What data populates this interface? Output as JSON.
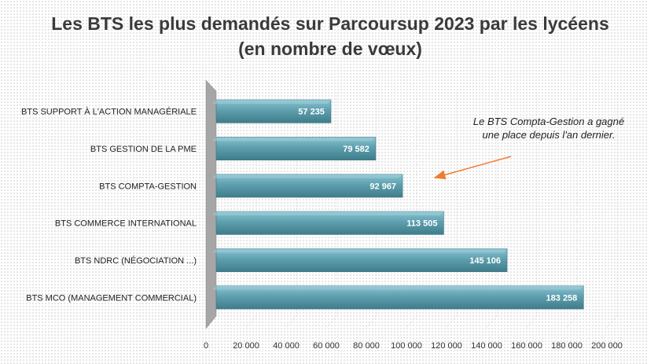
{
  "chart_data": {
    "type": "bar",
    "orientation": "horizontal",
    "title": "Les BTS les plus demandés sur Parcoursup 2023 par les lycéens  (en nombre de vœux)",
    "categories": [
      "BTS SUPPORT À L'ACTION MANAGÉRIALE",
      "BTS GESTION DE LA PME",
      "BTS COMPTA-GESTION",
      "BTS COMMERCE INTERNATIONAL",
      "BTS NDRC (NÉGOCIATION ...)",
      "BTS MCO (MANAGEMENT COMMERCIAL)"
    ],
    "values": [
      57235,
      79582,
      92967,
      113505,
      145106,
      183258
    ],
    "value_labels": [
      "57 235",
      "79 582",
      "92 967",
      "113 505",
      "145 106",
      "183 258"
    ],
    "xlim": [
      0,
      200000
    ],
    "xticks": [
      0,
      20000,
      40000,
      60000,
      80000,
      100000,
      120000,
      140000,
      160000,
      180000,
      200000
    ],
    "xtick_labels": [
      "0",
      "20 000",
      "40 000",
      "60 000",
      "80 000",
      "100 000",
      "120 000",
      "140 000",
      "160 000",
      "180 000",
      "200 000"
    ],
    "grid": true,
    "legend": "none",
    "bar_color": "#5e9fae",
    "annotation": "Le BTS Compta-Gestion a gagné une place depuis l'an dernier.",
    "arrow_color": "#ed7d31"
  }
}
